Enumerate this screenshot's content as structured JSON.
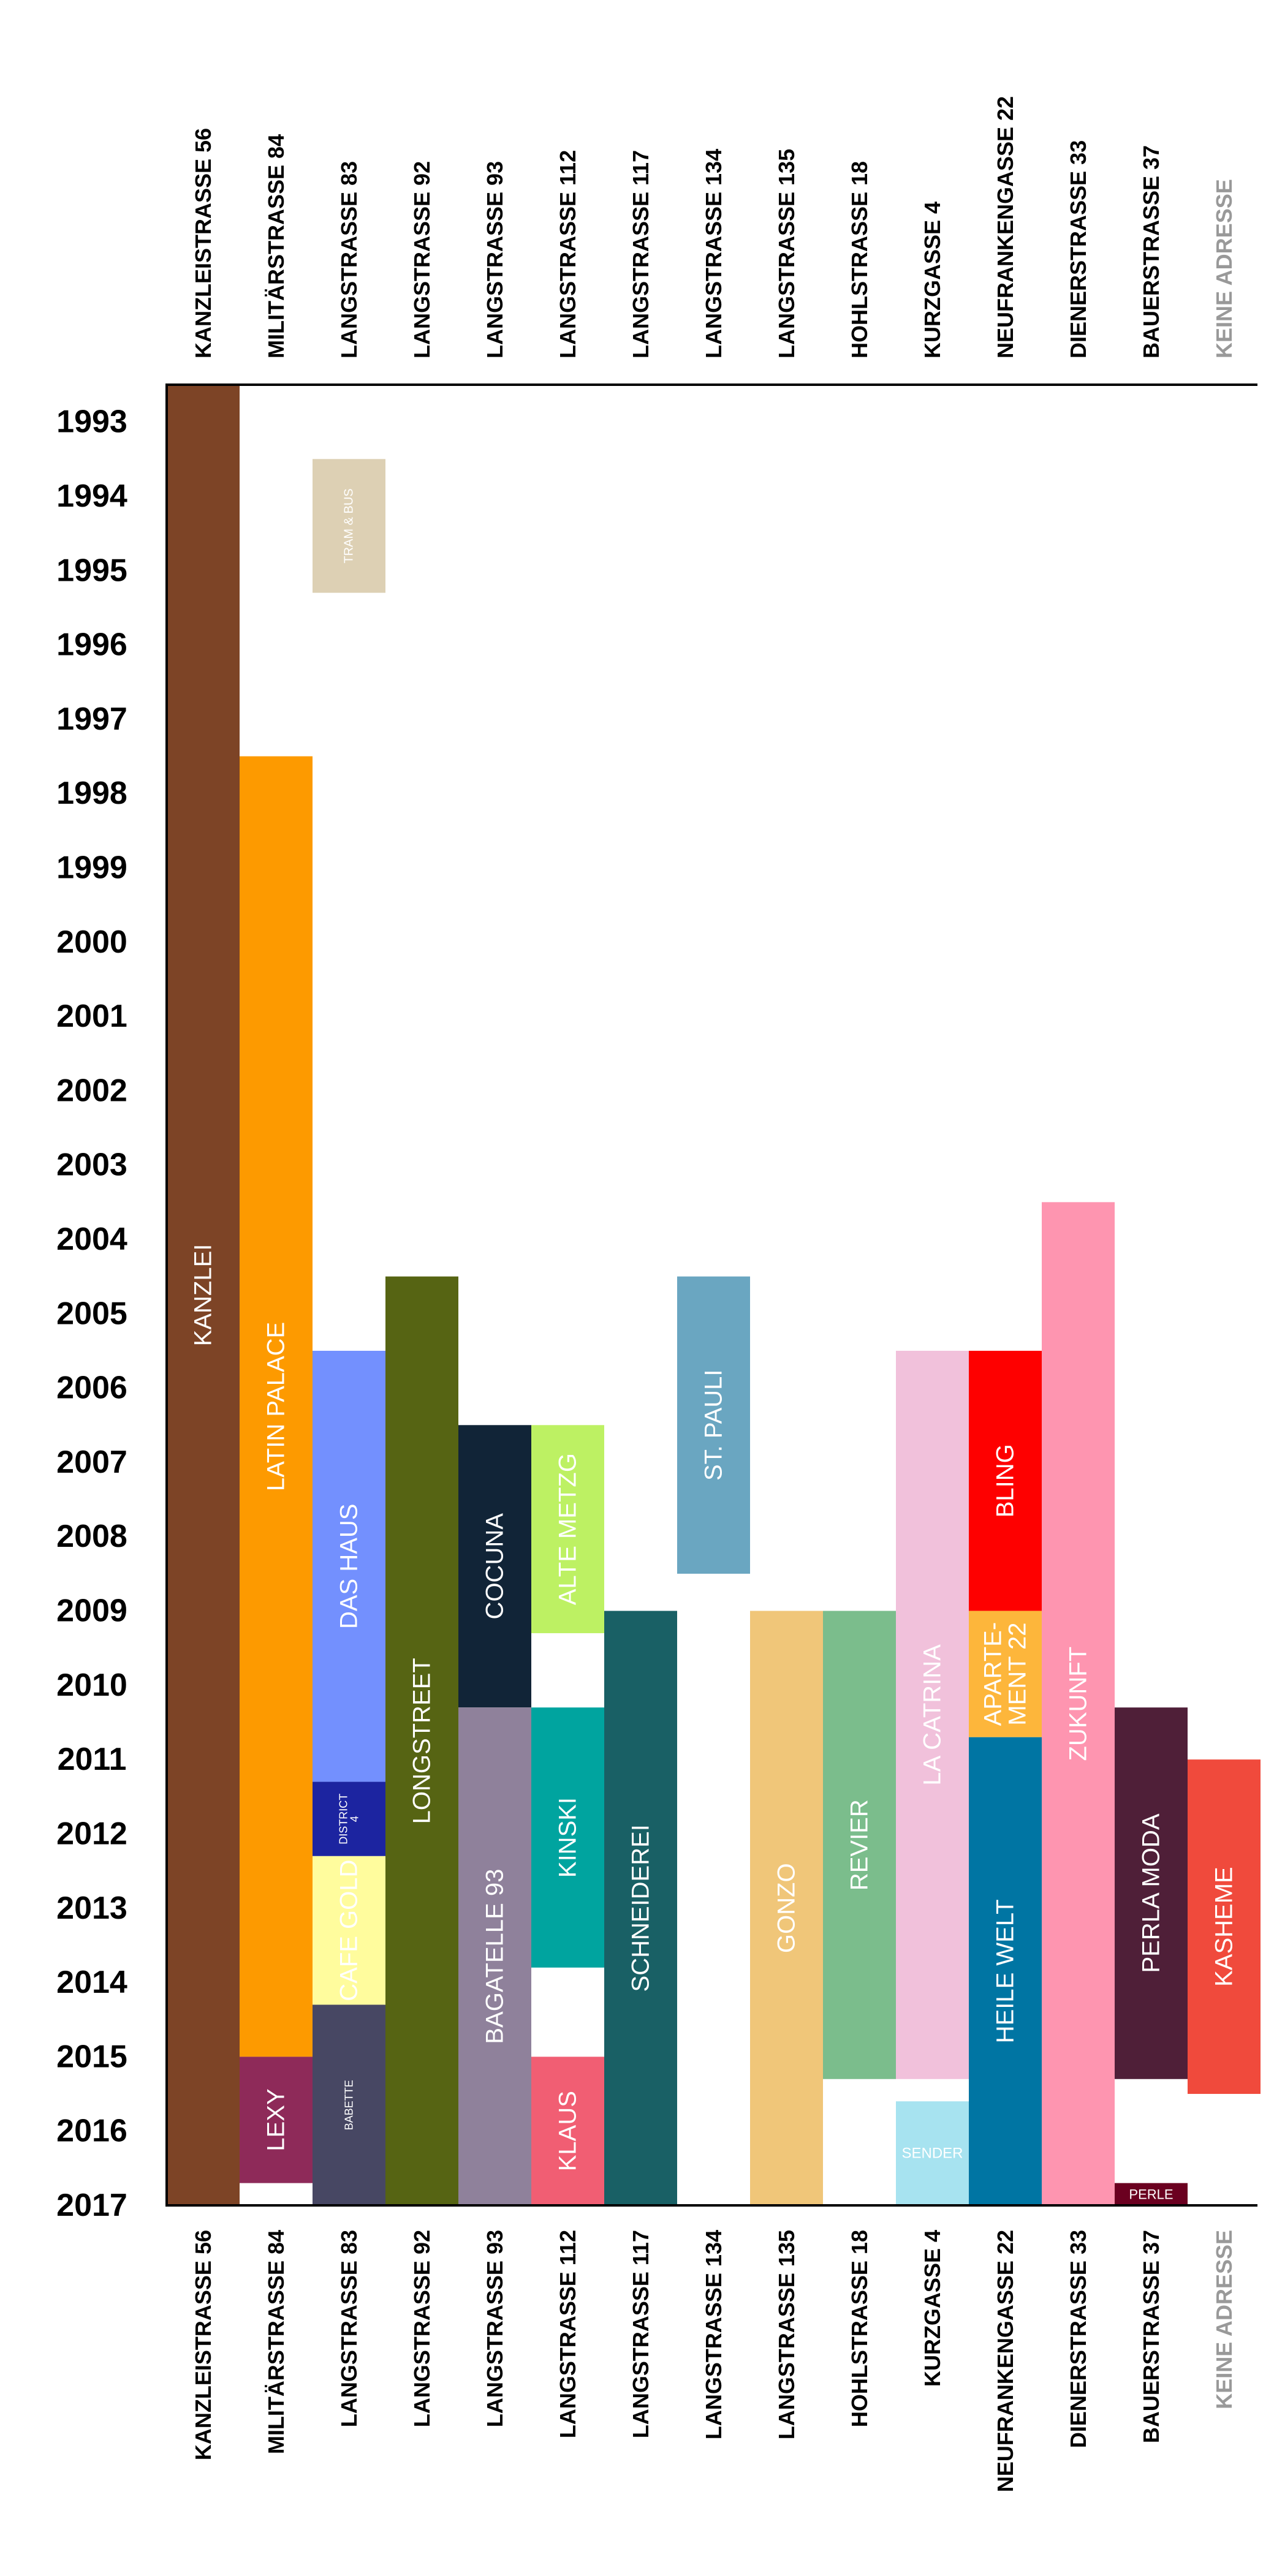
{
  "chart_data": {
    "type": "timeline",
    "years": [
      "1993",
      "1994",
      "1995",
      "1996",
      "1997",
      "1998",
      "1999",
      "2000",
      "2001",
      "2002",
      "2003",
      "2004",
      "2005",
      "2006",
      "2007",
      "2008",
      "2009",
      "2010",
      "2011",
      "2012",
      "2013",
      "2014",
      "2015",
      "2016",
      "2017"
    ],
    "year_range": [
      1993,
      2017
    ],
    "addresses": [
      {
        "name": "KANZLEISTRASSE 56",
        "color": "#000000"
      },
      {
        "name": "MILITÄRSTRASSE 84",
        "color": "#000000"
      },
      {
        "name": "LANGSTRASSE 83",
        "color": "#000000"
      },
      {
        "name": "LANGSTRASSE 92",
        "color": "#000000"
      },
      {
        "name": "LANGSTRASSE 93",
        "color": "#000000"
      },
      {
        "name": "LANGSTRASSE 112",
        "color": "#000000"
      },
      {
        "name": "LANGSTRASSE 117",
        "color": "#000000"
      },
      {
        "name": "LANGSTRASSE 134",
        "color": "#000000"
      },
      {
        "name": "LANGSTRASSE 135",
        "color": "#000000"
      },
      {
        "name": "HOHLSTRASSE 18",
        "color": "#000000"
      },
      {
        "name": "KURZGASSE 4",
        "color": "#000000"
      },
      {
        "name": "NEUFRANKENGASSE 22",
        "color": "#000000"
      },
      {
        "name": "DIENERSTRASSE 33",
        "color": "#000000"
      },
      {
        "name": "BAUERSTRASSE 37",
        "color": "#000000"
      },
      {
        "name": "KEINE ADRESSE",
        "color": "#999999"
      }
    ],
    "venues": [
      {
        "name": "KANZLEI",
        "col": 0,
        "start": 1993.0,
        "end": 2017.5,
        "color": "#7d4426"
      },
      {
        "name": "LATIN PALACE",
        "col": 1,
        "start": 1998.0,
        "end": 2015.5,
        "color": "#fd9a00"
      },
      {
        "name": "LEXY",
        "col": 1,
        "start": 2015.5,
        "end": 2017.2,
        "color": "#8e2a59"
      },
      {
        "name": "TRAM & BUS",
        "col": 2,
        "start": 1994.0,
        "end": 1995.8,
        "color": "#ddd0b4"
      },
      {
        "name": "DAS HAUS",
        "col": 2,
        "start": 2006.0,
        "end": 2011.8,
        "color": "#7390fe"
      },
      {
        "name": "DISTRICT 4",
        "col": 2,
        "start": 2011.8,
        "end": 2012.8,
        "color": "#1c24a0"
      },
      {
        "name": "CAFE GOLD",
        "col": 2,
        "start": 2012.8,
        "end": 2014.8,
        "color": "#fffc9d"
      },
      {
        "name": "BABETTE",
        "col": 2,
        "start": 2014.8,
        "end": 2017.5,
        "color": "#474763"
      },
      {
        "name": "LONGSTREET",
        "col": 3,
        "start": 2005.0,
        "end": 2017.5,
        "color": "#566413"
      },
      {
        "name": "COCUNA",
        "col": 4,
        "start": 2007.0,
        "end": 2010.8,
        "color": "#112437"
      },
      {
        "name": "BAGATELLE 93",
        "col": 4,
        "start": 2010.8,
        "end": 2017.5,
        "color": "#8f819b"
      },
      {
        "name": "ALTE METZG",
        "col": 5,
        "start": 2007.0,
        "end": 2009.8,
        "color": "#bdf163"
      },
      {
        "name": "KINSKI",
        "col": 5,
        "start": 2010.8,
        "end": 2014.3,
        "color": "#00a49f"
      },
      {
        "name": "KLAUS",
        "col": 5,
        "start": 2015.5,
        "end": 2017.5,
        "color": "#f15e73"
      },
      {
        "name": "SCHNEIDEREI",
        "col": 6,
        "start": 2009.5,
        "end": 2017.5,
        "color": "#196065"
      },
      {
        "name": "ST. PAULI",
        "col": 7,
        "start": 2005.0,
        "end": 2009.0,
        "color": "#6aa6c1"
      },
      {
        "name": "GONZO",
        "col": 8,
        "start": 2009.5,
        "end": 2017.5,
        "color": "#f0c679"
      },
      {
        "name": "REVIER",
        "col": 9,
        "start": 2009.5,
        "end": 2015.8,
        "color": "#7bbd8c"
      },
      {
        "name": "LA CATRINA",
        "col": 10,
        "start": 2006.0,
        "end": 2015.8,
        "color": "#f1c1db"
      },
      {
        "name": "SENDER",
        "col": 10,
        "start": 2016.1,
        "end": 2017.5,
        "color": "#a7e3f0"
      },
      {
        "name": "BLING",
        "col": 11,
        "start": 2006.0,
        "end": 2009.5,
        "color": "#fe0000"
      },
      {
        "name": "APARTE-MENT 22",
        "col": 11,
        "start": 2009.5,
        "end": 2011.2,
        "color": "#fdb63b"
      },
      {
        "name": "HEILE WELT",
        "col": 11,
        "start": 2011.2,
        "end": 2017.5,
        "color": "#0075a3"
      },
      {
        "name": "ZUKUNFT",
        "col": 12,
        "start": 2004.0,
        "end": 2017.5,
        "color": "#fe95b0"
      },
      {
        "name": "PERLA MODA",
        "col": 13,
        "start": 2010.8,
        "end": 2015.8,
        "color": "#4f1f38"
      },
      {
        "name": "PERLE",
        "col": 13,
        "start": 2017.2,
        "end": 2017.5,
        "color": "#6b0020"
      },
      {
        "name": "KASHEME",
        "col": 14,
        "start": 2011.5,
        "end": 2016.0,
        "color": "#f04a3c"
      }
    ]
  }
}
